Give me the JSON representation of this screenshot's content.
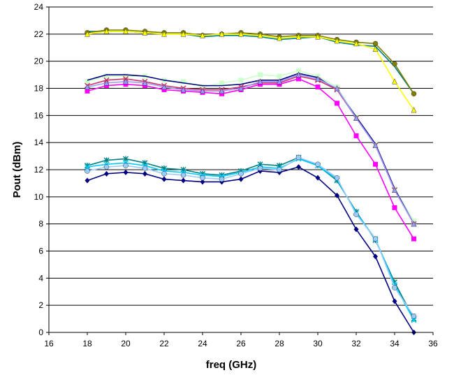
{
  "chart_data": {
    "type": "line",
    "title": "",
    "xlabel": "freq (GHz)",
    "ylabel": "Pout (dBm)",
    "xlim": [
      16,
      36
    ],
    "ylim": [
      0,
      24
    ],
    "xticks": [
      16,
      18,
      20,
      22,
      24,
      26,
      28,
      30,
      32,
      34,
      36
    ],
    "yticks": [
      0,
      2,
      4,
      6,
      8,
      10,
      12,
      14,
      16,
      18,
      20,
      22,
      24
    ],
    "grid": "horizontal",
    "legend": "none",
    "x": [
      18,
      19,
      20,
      21,
      22,
      23,
      24,
      25,
      26,
      27,
      28,
      29,
      30,
      31,
      32,
      33,
      34,
      35
    ],
    "series": [
      {
        "color": "#000080",
        "marker": "diamond",
        "values": [
          11.2,
          11.7,
          11.8,
          11.7,
          11.3,
          11.2,
          11.1,
          11.1,
          11.3,
          11.9,
          11.8,
          12.2,
          11.4,
          10.1,
          7.6,
          5.6,
          2.3,
          0.0
        ]
      },
      {
        "color": "#008080",
        "marker": "asterisk",
        "values": [
          12.3,
          12.7,
          12.8,
          12.5,
          12.1,
          12.0,
          11.7,
          11.6,
          11.9,
          12.4,
          12.3,
          12.9,
          12.3,
          11.2,
          8.9,
          6.8,
          3.7,
          1.0
        ]
      },
      {
        "color": "#00CCFF",
        "marker": "x",
        "values": [
          12.2,
          12.4,
          12.5,
          12.3,
          11.9,
          11.8,
          11.6,
          11.5,
          11.8,
          12.2,
          12.1,
          12.8,
          12.3,
          11.3,
          8.8,
          6.9,
          3.5,
          0.9
        ]
      },
      {
        "color": "#99CCFF",
        "marker": "circle",
        "values": [
          11.9,
          12.2,
          12.3,
          12.1,
          11.7,
          11.6,
          11.4,
          11.3,
          11.7,
          12.1,
          12.0,
          12.9,
          12.4,
          11.4,
          8.7,
          6.9,
          3.3,
          1.2
        ]
      },
      {
        "color": "#CCFFCC",
        "marker": "square",
        "values": [
          18.5,
          18.9,
          18.9,
          18.9,
          18.6,
          18.5,
          18.1,
          18.4,
          18.6,
          19.0,
          18.9,
          19.3,
          18.9,
          18.1,
          15.9,
          13.9,
          10.6,
          8.2
        ]
      },
      {
        "color": "#000080",
        "marker": "none",
        "values": [
          18.6,
          19.0,
          19.0,
          18.9,
          18.6,
          18.4,
          18.2,
          18.2,
          18.3,
          18.6,
          18.6,
          19.1,
          18.8,
          17.9,
          15.9,
          13.9,
          10.6,
          8.0
        ]
      },
      {
        "color": "#CC3366",
        "marker": "x",
        "values": [
          18.2,
          18.6,
          18.7,
          18.5,
          18.2,
          18.0,
          17.9,
          17.9,
          18.1,
          18.4,
          18.4,
          18.9,
          18.6,
          17.9,
          15.8,
          13.8,
          10.5,
          8.0
        ]
      },
      {
        "color": "#FF00FF",
        "marker": "square",
        "values": [
          17.8,
          18.2,
          18.3,
          18.2,
          17.9,
          17.8,
          17.7,
          17.6,
          17.9,
          18.3,
          18.3,
          18.7,
          18.1,
          16.9,
          14.5,
          12.4,
          9.2,
          6.9
        ]
      },
      {
        "color": "#9999FF",
        "marker": "triangle",
        "values": [
          18.1,
          18.4,
          18.5,
          18.4,
          18.1,
          17.9,
          17.8,
          17.8,
          18.0,
          18.5,
          18.5,
          19.0,
          18.7,
          18.0,
          15.8,
          13.8,
          10.5,
          8.0
        ]
      },
      {
        "color": "#008080",
        "marker": "none",
        "values": [
          22.2,
          22.2,
          22.2,
          22.1,
          22.0,
          22.0,
          21.8,
          21.9,
          21.9,
          21.8,
          21.6,
          21.7,
          21.8,
          21.4,
          21.2,
          21.1,
          19.6,
          17.6
        ]
      },
      {
        "color": "#808000",
        "marker": "circle",
        "values": [
          22.1,
          22.3,
          22.3,
          22.2,
          22.1,
          22.1,
          21.9,
          22.0,
          22.1,
          22.0,
          21.8,
          21.9,
          21.9,
          21.6,
          21.4,
          21.3,
          19.8,
          17.6
        ]
      },
      {
        "color": "#FFFF00",
        "marker": "triangle",
        "values": [
          22.0,
          22.2,
          22.2,
          22.1,
          22.0,
          22.0,
          21.9,
          22.0,
          22.0,
          21.9,
          21.7,
          21.8,
          21.8,
          21.5,
          21.3,
          20.9,
          18.5,
          16.4
        ]
      }
    ]
  }
}
